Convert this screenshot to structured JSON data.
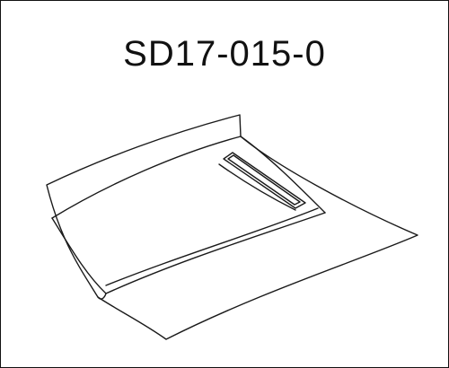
{
  "diagram": {
    "part_number": "SD17-015-0",
    "subject_icon": "car-hood-icon",
    "line_color": "#1a1a1a",
    "background_color": "#ffffff"
  }
}
